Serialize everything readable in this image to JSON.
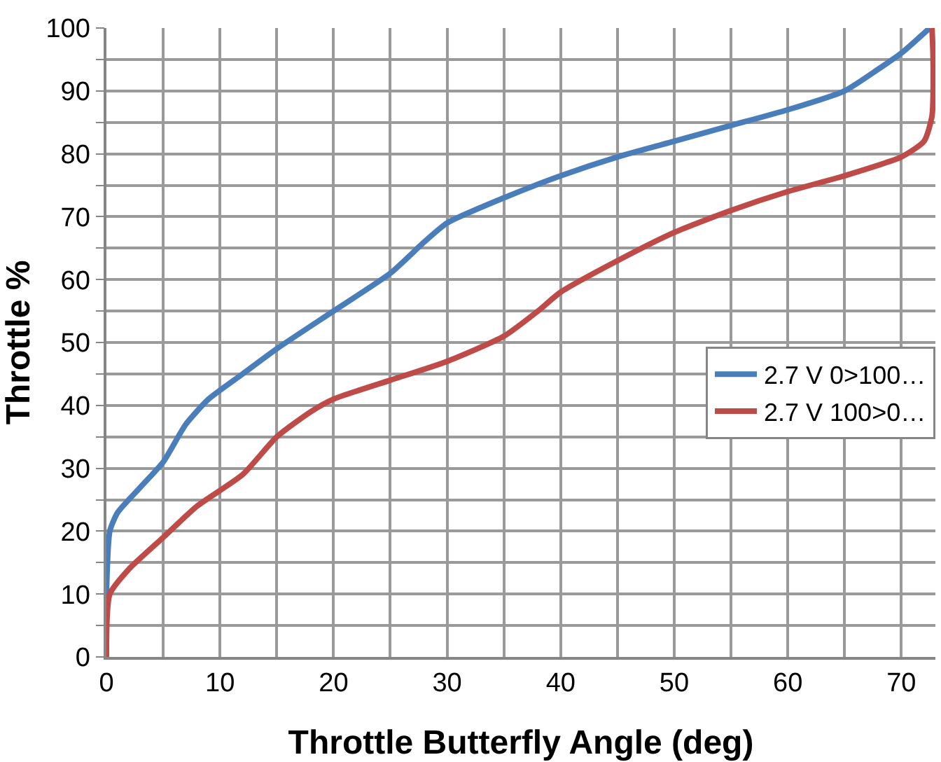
{
  "chart_data": {
    "type": "line",
    "xlabel": "Throttle Butterfly Angle (deg)",
    "ylabel": "Throttle %",
    "xlim": [
      0,
      73
    ],
    "ylim": [
      0,
      100
    ],
    "xticks": [
      0,
      {
        "value": 5,
        "label": null
      },
      10,
      {
        "value": 15,
        "label": null
      },
      20,
      {
        "value": 25,
        "label": null
      },
      30,
      {
        "value": 35,
        "label": null
      },
      40,
      {
        "value": 45,
        "label": null
      },
      50,
      {
        "value": 55,
        "label": null
      },
      60,
      {
        "value": 65,
        "label": null
      },
      70
    ],
    "yticks": [
      0,
      {
        "value": 5,
        "label": null
      },
      10,
      {
        "value": 15,
        "label": null
      },
      20,
      {
        "value": 25,
        "label": null
      },
      30,
      {
        "value": 35,
        "label": null
      },
      40,
      {
        "value": 45,
        "label": null
      },
      50,
      {
        "value": 55,
        "label": null
      },
      60,
      {
        "value": 65,
        "label": null
      },
      70,
      {
        "value": 75,
        "label": null
      },
      80,
      {
        "value": 85,
        "label": null
      },
      90,
      {
        "value": 95,
        "label": null
      },
      100
    ],
    "grid": true,
    "legend": "right",
    "marker": "none",
    "line_style": "solid",
    "series": [
      {
        "name": "2.7 V 0>100…",
        "color": "#4a7ebb",
        "x": [
          0,
          0,
          0.3,
          1,
          3,
          5,
          7,
          9,
          12,
          15,
          20,
          25,
          28,
          30,
          35,
          40,
          45,
          50,
          55,
          60,
          65,
          68,
          70,
          72.5
        ],
        "values": [
          0,
          10,
          20,
          23,
          27,
          31,
          37,
          41,
          45,
          49,
          55,
          61,
          66,
          69,
          73,
          76.5,
          79.5,
          82,
          84.5,
          87,
          90,
          93.5,
          96,
          100
        ]
      },
      {
        "name": "2.7 V 100>0…",
        "color": "#be4b48",
        "x": [
          0,
          0.3,
          2,
          5,
          8,
          12,
          15,
          18,
          20,
          25,
          30,
          35,
          38,
          40,
          45,
          50,
          55,
          60,
          65,
          70,
          72,
          72.7,
          72.8,
          72.7
        ],
        "values": [
          0,
          10,
          14,
          19,
          24,
          29,
          35,
          39,
          41,
          44,
          47,
          51,
          55,
          58,
          63,
          67.5,
          71,
          74,
          76.5,
          79.5,
          82,
          86,
          95,
          100
        ]
      }
    ]
  }
}
